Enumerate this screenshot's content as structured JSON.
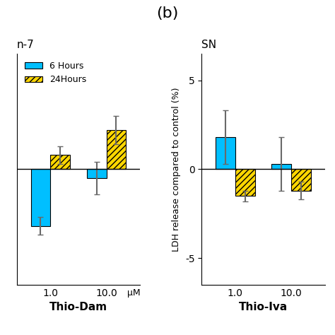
{
  "title": "(b)",
  "chart_data": [
    {
      "type": "bar",
      "title": "n-7",
      "xlabel": "Thio-Dam",
      "categories": [
        "1.0",
        "10.0"
      ],
      "series": [
        {
          "name": "6 Hours",
          "color": "#00BFFF",
          "values": [
            -3.2,
            -0.5
          ],
          "errors": [
            0.5,
            0.9
          ]
        },
        {
          "name": "24Hours",
          "color": "#FFD700",
          "values": [
            0.8,
            2.2
          ],
          "errors": [
            0.5,
            0.8
          ]
        }
      ],
      "ylim": [
        -6.5,
        6.5
      ],
      "tick_labels": "x",
      "legend": "upper left",
      "annotations": [
        "μM"
      ]
    },
    {
      "type": "bar",
      "title": "SN",
      "xlabel": "Thio-Iva",
      "ylabel": "LDH release compared to control (%)",
      "categories": [
        "1.0",
        "10.0"
      ],
      "series": [
        {
          "name": "6 Hours",
          "color": "#00BFFF",
          "values": [
            1.8,
            0.3
          ],
          "errors": [
            1.5,
            1.5
          ]
        },
        {
          "name": "24Hours",
          "color": "#FFD700",
          "values": [
            -1.5,
            -1.2
          ],
          "errors": [
            0.3,
            0.5
          ]
        }
      ],
      "ylim": [
        -6.5,
        6.5
      ],
      "yticks": [
        -5,
        0,
        5
      ]
    }
  ]
}
